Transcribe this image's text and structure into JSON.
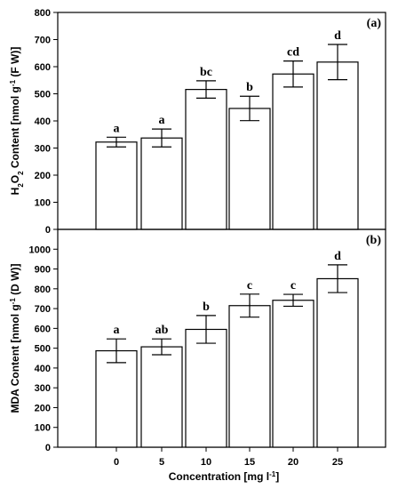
{
  "chart_data": [
    {
      "type": "bar",
      "panel_label": "(a)",
      "categories": [
        "0",
        "5",
        "10",
        "15",
        "20",
        "25"
      ],
      "values": [
        322,
        337,
        516,
        446,
        573,
        617
      ],
      "errors": [
        18,
        33,
        32,
        45,
        48,
        65
      ],
      "letters": [
        "a",
        "a",
        "bc",
        "b",
        "cd",
        "d"
      ],
      "ylabel_parts": [
        "H",
        "2",
        "O",
        "2",
        " Content [nmol g",
        "-1",
        " (F W)]"
      ],
      "ylim": [
        0,
        800
      ],
      "yticks": [
        0,
        100,
        200,
        300,
        400,
        500,
        600,
        700,
        800
      ],
      "grid": false
    },
    {
      "type": "bar",
      "panel_label": "(b)",
      "categories": [
        "0",
        "5",
        "10",
        "15",
        "20",
        "25"
      ],
      "values": [
        487,
        507,
        595,
        715,
        742,
        851
      ],
      "errors": [
        60,
        40,
        70,
        58,
        30,
        70
      ],
      "letters": [
        "a",
        "ab",
        "b",
        "c",
        "c",
        "d"
      ],
      "ylabel_parts": [
        "MDA Content [nmol g",
        "-1",
        " (D W)]"
      ],
      "ylim": [
        0,
        1100
      ],
      "yticks": [
        0,
        100,
        200,
        300,
        400,
        500,
        600,
        700,
        800,
        900,
        1000
      ],
      "xlabel_parts": [
        "Concentration [mg l",
        "-1",
        "]"
      ],
      "grid": false
    }
  ]
}
